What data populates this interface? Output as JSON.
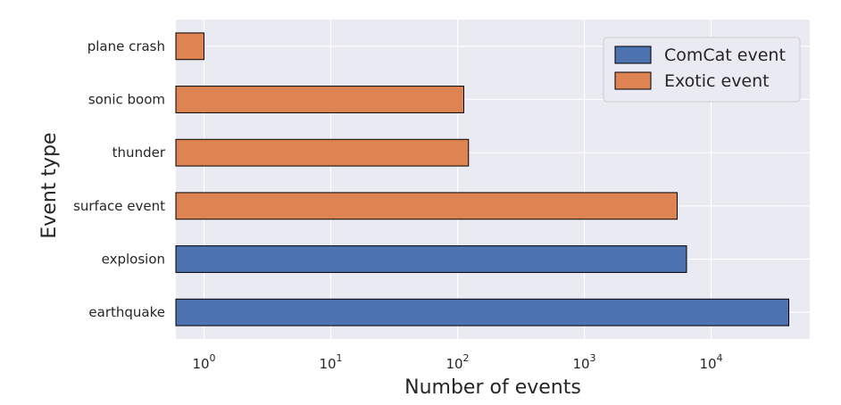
{
  "chart_data": {
    "type": "bar",
    "orientation": "horizontal",
    "xscale": "log",
    "xlim": [
      0.6,
      60000
    ],
    "xticks": [
      {
        "value": 1,
        "base": "10",
        "exp": "0"
      },
      {
        "value": 10,
        "base": "10",
        "exp": "1"
      },
      {
        "value": 100,
        "base": "10",
        "exp": "2"
      },
      {
        "value": 1000,
        "base": "10",
        "exp": "3"
      },
      {
        "value": 10000,
        "base": "10",
        "exp": "4"
      }
    ],
    "xlabel": "Number of events",
    "ylabel": "Event type",
    "grid": true,
    "legend_position": "top-right",
    "categories": [
      "plane crash",
      "sonic boom",
      "thunder",
      "surface event",
      "explosion",
      "earthquake"
    ],
    "values": [
      1,
      112,
      122,
      5400,
      6400,
      41000
    ],
    "groups": [
      "Exotic event",
      "Exotic event",
      "Exotic event",
      "Exotic event",
      "ComCat event",
      "ComCat event"
    ],
    "legend": [
      {
        "name": "ComCat event",
        "color": "#4c72b0"
      },
      {
        "name": "Exotic event",
        "color": "#dd8452"
      }
    ]
  }
}
